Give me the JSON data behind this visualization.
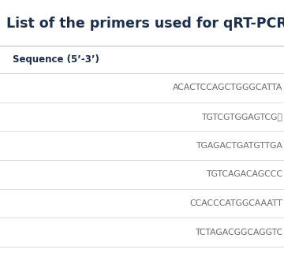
{
  "title": "List of the primers used for qRT-PCR.",
  "title_color": "#1b2e4b",
  "title_fontsize": 12.5,
  "header": "Sequence (5’-3’)",
  "header_fontsize": 8.5,
  "header_color": "#1b2e4b",
  "rows": [
    "ACACTCCAGCTGGGCATTA",
    "TGTCGTGGAGTCG\u0000",
    "TGAGACTGATGTTGA",
    "TGTCAGACAGCCC",
    "CCACCCATGGCAAATT",
    "TCTAGACGGCAGGTC"
  ],
  "row_color": "#6b6b6b",
  "row_fontsize": 7.8,
  "bg_color": "#ffffff",
  "line_color": "#d0d0d0",
  "title_line_color": "#c0c0c0"
}
